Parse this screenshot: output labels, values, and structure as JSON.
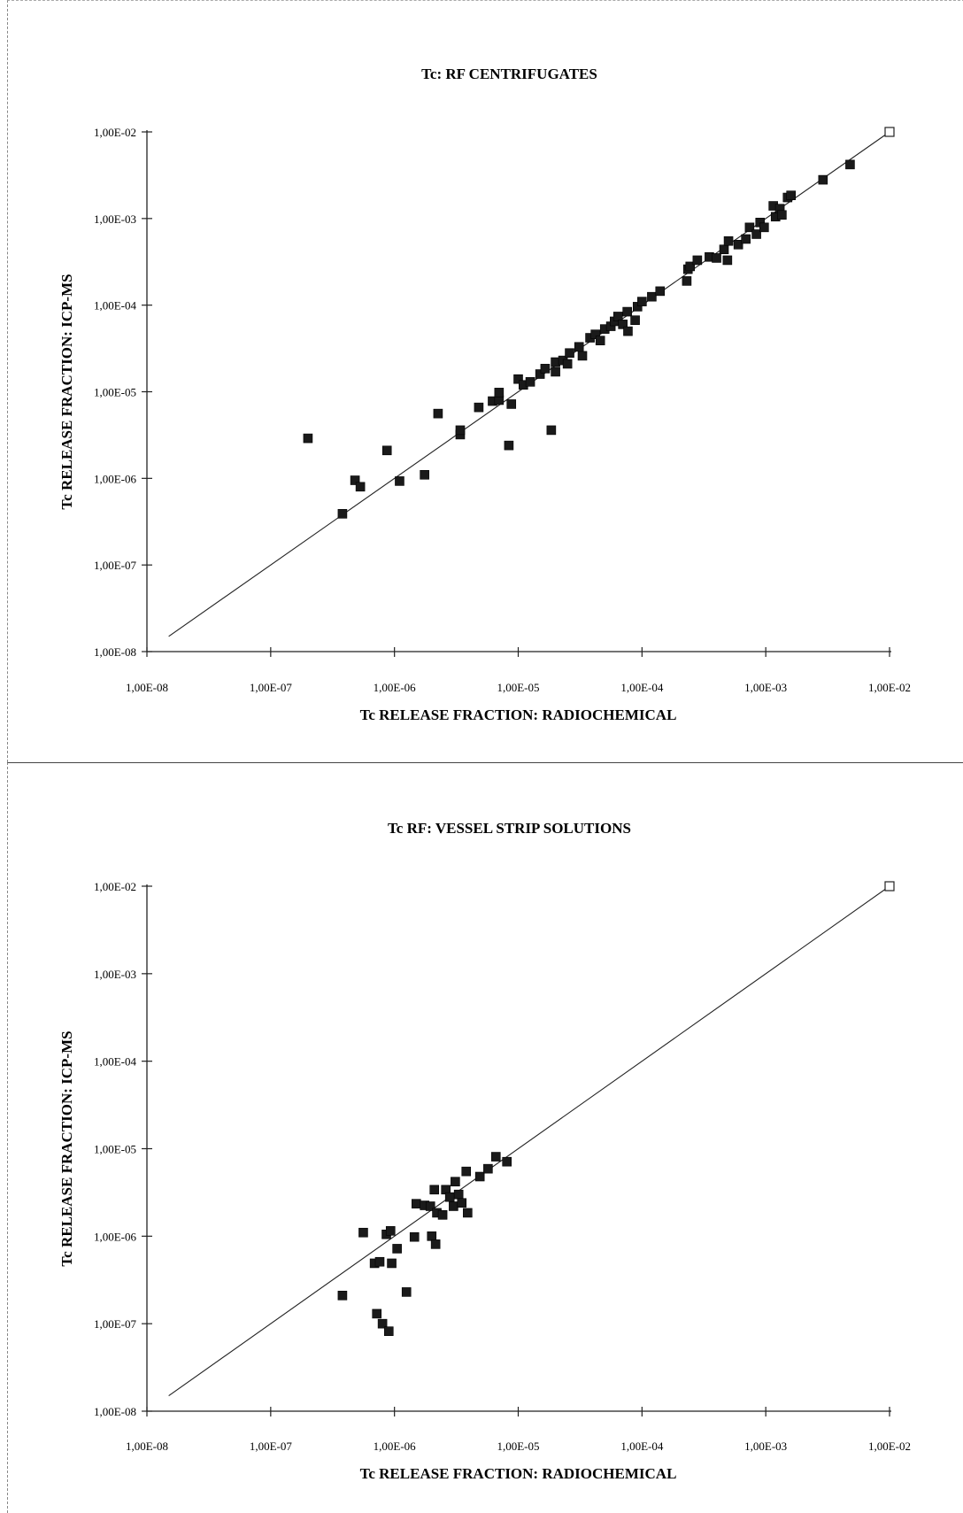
{
  "chart_data": [
    {
      "type": "scatter",
      "title": "Tc: RF  CENTRIFUGATES",
      "xlabel": "Tc RELEASE FRACTION: RADIOCHEMICAL",
      "ylabel": "Tc RELEASE FRACTION: ICP-MS",
      "x_scale": "log",
      "y_scale": "log",
      "xlim": [
        1e-08,
        0.01
      ],
      "ylim": [
        1e-08,
        0.01
      ],
      "x_ticks": [
        "1,00E-08",
        "1,00E-07",
        "1,00E-06",
        "1,00E-05",
        "1,00E-04",
        "1,00E-03",
        "1,00E-02"
      ],
      "y_ticks": [
        "1,00E-08",
        "1,00E-07",
        "1,00E-06",
        "1,00E-05",
        "1,00E-04",
        "1,00E-03",
        "1,00E-02"
      ],
      "grid": false,
      "reference_line": {
        "type": "y=x",
        "from": 1.5e-08,
        "to": 0.01
      },
      "open_marker": [
        0.01,
        0.01
      ],
      "points": [
        [
          2e-07,
          2.9e-06
        ],
        [
          3.8e-07,
          3.9e-07
        ],
        [
          4.8e-07,
          9.5e-07
        ],
        [
          5.3e-07,
          8e-07
        ],
        [
          8.7e-07,
          2.1e-06
        ],
        [
          1.1e-06,
          9.3e-07
        ],
        [
          1.75e-06,
          1.1e-06
        ],
        [
          2.25e-06,
          5.6e-06
        ],
        [
          3.4e-06,
          3.2e-06
        ],
        [
          3.4e-06,
          3.6e-06
        ],
        [
          4.8e-06,
          6.6e-06
        ],
        [
          6.2e-06,
          7.8e-06
        ],
        [
          7e-06,
          8e-06
        ],
        [
          7e-06,
          9.8e-06
        ],
        [
          8.4e-06,
          2.4e-06
        ],
        [
          8.8e-06,
          7.2e-06
        ],
        [
          1e-05,
          1.4e-05
        ],
        [
          1.1e-05,
          1.2e-05
        ],
        [
          1.25e-05,
          1.3e-05
        ],
        [
          1.5e-05,
          1.6e-05
        ],
        [
          1.65e-05,
          1.85e-05
        ],
        [
          1.85e-05,
          3.6e-06
        ],
        [
          2e-05,
          1.7e-05
        ],
        [
          2e-05,
          2.2e-05
        ],
        [
          2.3e-05,
          2.3e-05
        ],
        [
          2.5e-05,
          2.1e-05
        ],
        [
          2.6e-05,
          2.8e-05
        ],
        [
          3.1e-05,
          3.3e-05
        ],
        [
          3.3e-05,
          2.6e-05
        ],
        [
          3.8e-05,
          4.2e-05
        ],
        [
          4.2e-05,
          4.6e-05
        ],
        [
          4.6e-05,
          3.9e-05
        ],
        [
          5e-05,
          5.3e-05
        ],
        [
          5.6e-05,
          5.7e-05
        ],
        [
          6e-05,
          6.5e-05
        ],
        [
          6.4e-05,
          7.4e-05
        ],
        [
          7e-05,
          6e-05
        ],
        [
          7.6e-05,
          8.4e-05
        ],
        [
          7.7e-05,
          5e-05
        ],
        [
          8.8e-05,
          6.7e-05
        ],
        [
          9.2e-05,
          9.6e-05
        ],
        [
          0.0001,
          0.00011
        ],
        [
          0.00012,
          0.000125
        ],
        [
          0.00014,
          0.000145
        ],
        [
          0.00023,
          0.00019
        ],
        [
          0.000235,
          0.00026
        ],
        [
          0.000245,
          0.00028
        ],
        [
          0.00028,
          0.00033
        ],
        [
          0.00035,
          0.00036
        ],
        [
          0.0004,
          0.00035
        ],
        [
          0.00046,
          0.00044
        ],
        [
          0.00049,
          0.00033
        ],
        [
          0.0005,
          0.00055
        ],
        [
          0.0006,
          0.0005
        ],
        [
          0.00069,
          0.00058
        ],
        [
          0.00074,
          0.00079
        ],
        [
          0.00084,
          0.00066
        ],
        [
          0.0009,
          0.0009
        ],
        [
          0.00097,
          0.00079
        ],
        [
          0.00115,
          0.0014
        ],
        [
          0.0012,
          0.00105
        ],
        [
          0.0013,
          0.0013
        ],
        [
          0.00135,
          0.0011
        ],
        [
          0.0015,
          0.00175
        ],
        [
          0.0016,
          0.00185
        ],
        [
          0.0029,
          0.0028
        ],
        [
          0.0048,
          0.0042
        ]
      ]
    },
    {
      "type": "scatter",
      "title": "Tc RF: VESSEL STRIP SOLUTIONS",
      "xlabel": "Tc RELEASE FRACTION: RADIOCHEMICAL",
      "ylabel": "Tc RELEASE FRACTION: ICP-MS",
      "x_scale": "log",
      "y_scale": "log",
      "xlim": [
        1e-08,
        0.01
      ],
      "ylim": [
        1e-08,
        0.01
      ],
      "x_ticks": [
        "1,00E-08",
        "1,00E-07",
        "1,00E-06",
        "1,00E-05",
        "1,00E-04",
        "1,00E-03",
        "1,00E-02"
      ],
      "y_ticks": [
        "1,00E-08",
        "1,00E-07",
        "1,00E-06",
        "1,00E-05",
        "1,00E-04",
        "1,00E-03",
        "1,00E-02"
      ],
      "grid": false,
      "reference_line": {
        "type": "y=x",
        "from": 1.5e-08,
        "to": 0.01
      },
      "open_marker": [
        0.01,
        0.01
      ],
      "points": [
        [
          3.8e-07,
          2.1e-07
        ],
        [
          5.6e-07,
          1.1e-06
        ],
        [
          6.9e-07,
          4.9e-07
        ],
        [
          7.2e-07,
          1.3e-07
        ],
        [
          7.6e-07,
          5.1e-07
        ],
        [
          8e-07,
          1e-07
        ],
        [
          8.6e-07,
          1.05e-06
        ],
        [
          9e-07,
          8.2e-08
        ],
        [
          9.3e-07,
          1.15e-06
        ],
        [
          9.5e-07,
          4.9e-07
        ],
        [
          1.05e-06,
          7.2e-07
        ],
        [
          1.25e-06,
          2.3e-07
        ],
        [
          1.45e-06,
          9.8e-07
        ],
        [
          1.5e-06,
          2.35e-06
        ],
        [
          1.75e-06,
          2.25e-06
        ],
        [
          1.95e-06,
          2.2e-06
        ],
        [
          2e-06,
          1e-06
        ],
        [
          2.1e-06,
          3.4e-06
        ],
        [
          2.15e-06,
          8.1e-07
        ],
        [
          2.2e-06,
          1.85e-06
        ],
        [
          2.45e-06,
          1.75e-06
        ],
        [
          2.6e-06,
          3.4e-06
        ],
        [
          2.8e-06,
          2.8e-06
        ],
        [
          3e-06,
          2.2e-06
        ],
        [
          3.1e-06,
          4.2e-06
        ],
        [
          3.3e-06,
          3e-06
        ],
        [
          3.5e-06,
          2.4e-06
        ],
        [
          3.8e-06,
          5.5e-06
        ],
        [
          3.9e-06,
          1.85e-06
        ],
        [
          4.9e-06,
          4.8e-06
        ],
        [
          5.7e-06,
          5.9e-06
        ],
        [
          6.6e-06,
          8.1e-06
        ],
        [
          8.1e-06,
          7.1e-06
        ]
      ]
    }
  ]
}
